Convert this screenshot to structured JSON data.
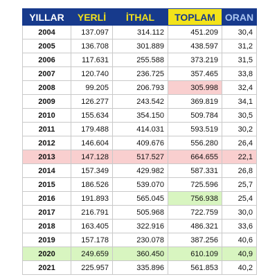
{
  "table": {
    "header": [
      "YILLAR",
      "YERLİ",
      "İTHAL",
      "TOPLAM",
      "ORAN"
    ],
    "rows": [
      [
        "2004",
        "137.097",
        "314.112",
        "451.209",
        "30,4"
      ],
      [
        "2005",
        "136.708",
        "301.889",
        "438.597",
        "31,2"
      ],
      [
        "2006",
        "117.631",
        "255.588",
        "373.219",
        "31,5"
      ],
      [
        "2007",
        "120.740",
        "236.725",
        "357.465",
        "33,8"
      ],
      [
        "2008",
        "99.205",
        "206.793",
        "305.998",
        "32,4"
      ],
      [
        "2009",
        "126.277",
        "243.542",
        "369.819",
        "34,1"
      ],
      [
        "2010",
        "155.634",
        "354.150",
        "509.784",
        "30,5"
      ],
      [
        "2011",
        "179.488",
        "414.031",
        "593.519",
        "30,2"
      ],
      [
        "2012",
        "146.604",
        "409.676",
        "556.280",
        "26,4"
      ],
      [
        "2013",
        "147.128",
        "517.527",
        "664.655",
        "22,1"
      ],
      [
        "2014",
        "157.349",
        "429.982",
        "587.331",
        "26,8"
      ],
      [
        "2015",
        "186.526",
        "539.070",
        "725.596",
        "25,7"
      ],
      [
        "2016",
        "191.893",
        "565.045",
        "756.938",
        "25,4"
      ],
      [
        "2017",
        "216.791",
        "505.968",
        "722.759",
        "30,0"
      ],
      [
        "2018",
        "163.405",
        "322.916",
        "486.321",
        "33,6"
      ],
      [
        "2019",
        "157.178",
        "230.078",
        "387.256",
        "40,6"
      ],
      [
        "2020",
        "249.659",
        "360.450",
        "610.109",
        "40,9"
      ],
      [
        "2021",
        "225.957",
        "335.896",
        "561.853",
        "40,2"
      ]
    ]
  }
}
